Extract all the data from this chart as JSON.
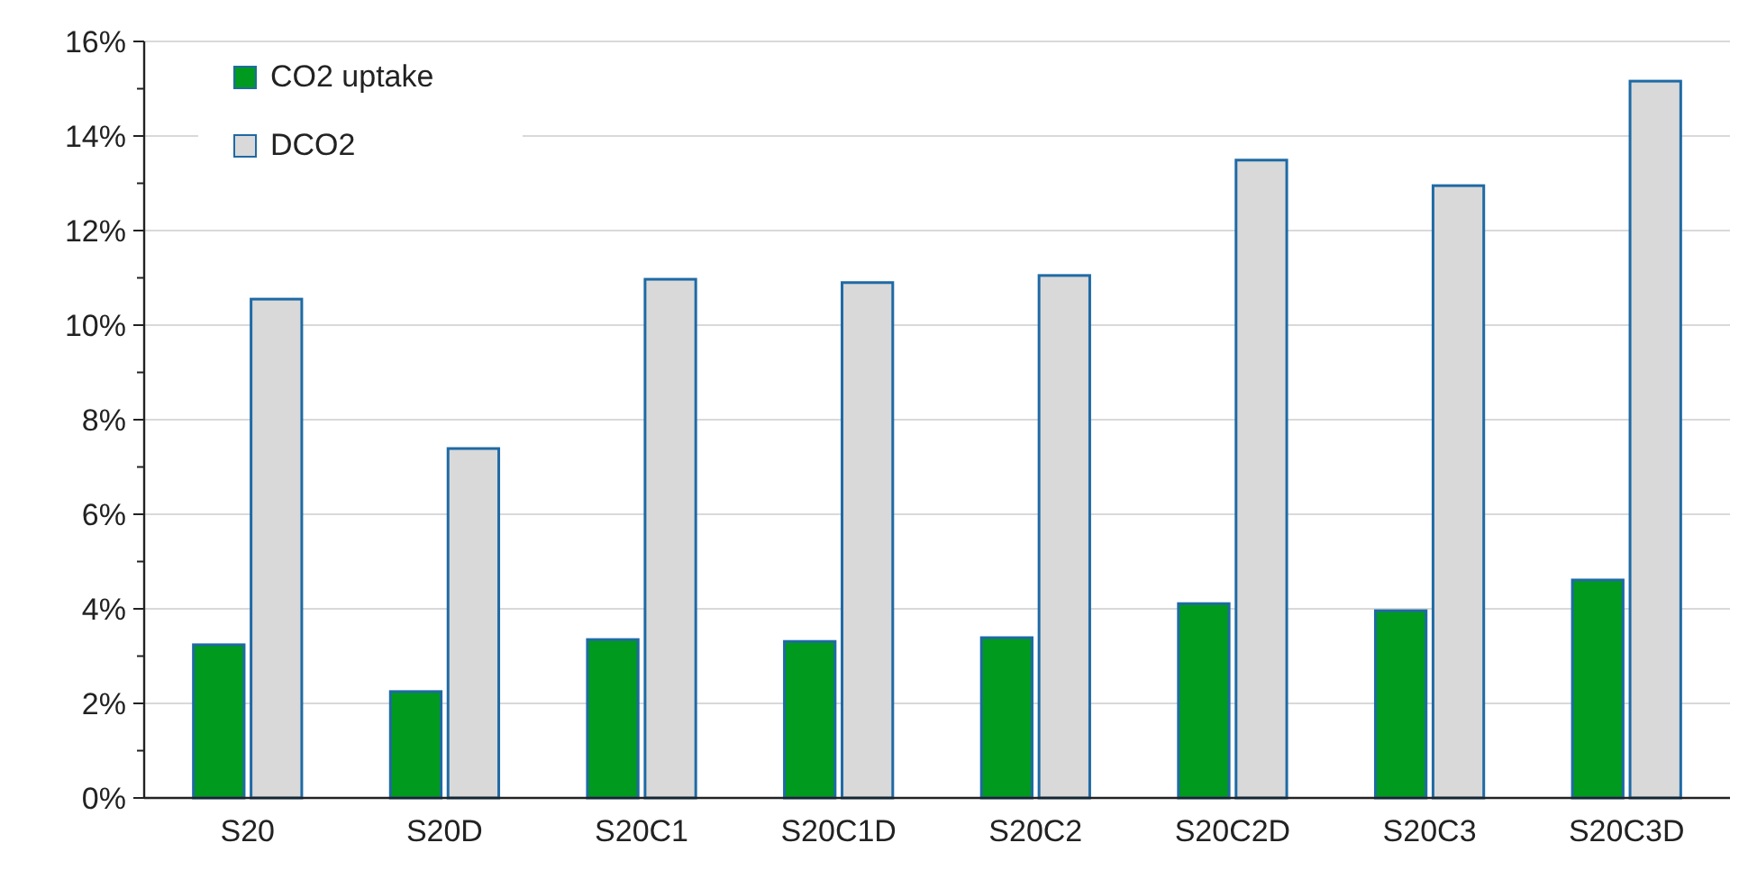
{
  "chart_data": {
    "type": "bar",
    "categories": [
      "S20",
      "S20D",
      "S20C1",
      "S20C1D",
      "S20C2",
      "S20C2D",
      "S20C3",
      "S20C3D"
    ],
    "series": [
      {
        "name": "CO2 uptake",
        "color": "#009a1e",
        "values": [
          3.24,
          2.25,
          3.35,
          3.31,
          3.39,
          4.11,
          3.96,
          4.61
        ]
      },
      {
        "name": "DCO2",
        "color": "#d9d9d9",
        "values": [
          10.55,
          7.39,
          10.97,
          10.9,
          11.05,
          13.49,
          12.95,
          15.16
        ]
      }
    ],
    "ylim": [
      0,
      16
    ],
    "yticks": [
      {
        "value": 0,
        "label": "0%"
      },
      {
        "value": 1,
        "label": null
      },
      {
        "value": 2,
        "label": "2%"
      },
      {
        "value": 3,
        "label": null
      },
      {
        "value": 4,
        "label": "4%"
      },
      {
        "value": 5,
        "label": null
      },
      {
        "value": 6,
        "label": "6%"
      },
      {
        "value": 7,
        "label": null
      },
      {
        "value": 8,
        "label": "8%"
      },
      {
        "value": 9,
        "label": null
      },
      {
        "value": 10,
        "label": "10%"
      },
      {
        "value": 11,
        "label": null
      },
      {
        "value": 12,
        "label": "12%"
      },
      {
        "value": 13,
        "label": null
      },
      {
        "value": 14,
        "label": "14%"
      },
      {
        "value": 15,
        "label": null
      },
      {
        "value": 16,
        "label": "16%"
      }
    ],
    "grid": "y",
    "legend": "top left"
  }
}
